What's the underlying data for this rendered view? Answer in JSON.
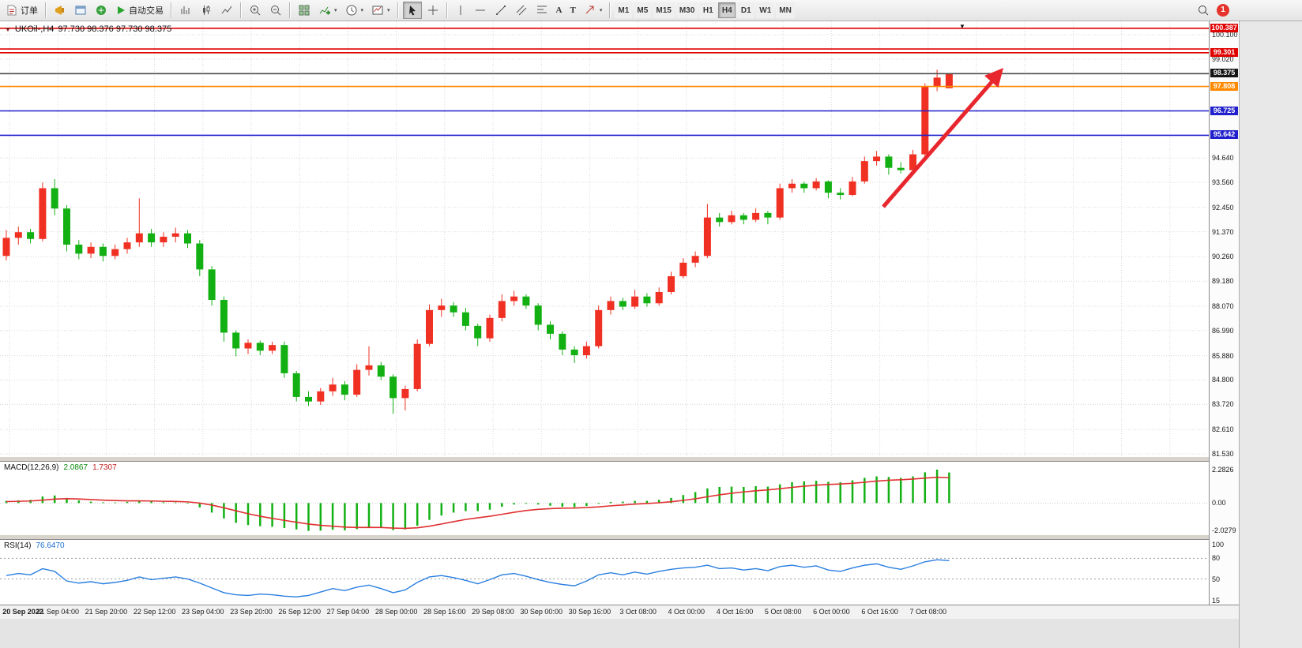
{
  "toolbar": {
    "order_label": "订单",
    "autotrade_label": "自动交易",
    "text_tool": "A",
    "label_tool": "T",
    "timeframes": [
      "M1",
      "M5",
      "M15",
      "M30",
      "H1",
      "H4",
      "D1",
      "W1",
      "MN"
    ],
    "active_timeframe": "H4",
    "notification_count": "1"
  },
  "chart_header": {
    "symbol_period": "UKOil-,H4",
    "ohlc": "97.730 98.376 97.730 98.375"
  },
  "chart_data": {
    "type": "candlestick",
    "symbol": "UKOil-",
    "timeframe": "H4",
    "up_color": "#f03022",
    "down_color": "#12b012",
    "grid_color": "#d8d8d8",
    "time_labels": [
      "20 Sep 2022",
      "21 Sep 04:00",
      "21 Sep 20:00",
      "22 Sep 12:00",
      "23 Sep 04:00",
      "23 Sep 20:00",
      "26 Sep 12:00",
      "27 Sep 04:00",
      "28 Sep 00:00",
      "28 Sep 16:00",
      "29 Sep 08:00",
      "30 Sep 00:00",
      "30 Sep 16:00",
      "3 Oct 08:00",
      "4 Oct 00:00",
      "4 Oct 16:00",
      "5 Oct 08:00",
      "6 Oct 00:00",
      "6 Oct 16:00",
      "7 Oct 08:00"
    ],
    "price_axis_ticks": [
      "100.100",
      "99.020",
      "94.640",
      "93.560",
      "92.450",
      "91.370",
      "90.260",
      "89.180",
      "88.070",
      "86.990",
      "85.880",
      "84.800",
      "83.720",
      "82.610",
      "81.530"
    ],
    "levels": [
      {
        "label": "100.387",
        "value": 100.387,
        "color": "#e00000",
        "badge": "#e00000",
        "line": true
      },
      {
        "label": "",
        "value": 99.47,
        "color": "#e00000",
        "badge": null,
        "line": true
      },
      {
        "label": "99.301",
        "value": 99.301,
        "color": "#e00000",
        "badge": "#e00000",
        "line": true
      },
      {
        "label": "98.375",
        "value": 98.375,
        "color": "#4a4a4a",
        "badge": "#151515",
        "line": true
      },
      {
        "label": "97.808",
        "value": 97.808,
        "color": "#ff8a00",
        "badge": "#ff8a00",
        "line": true
      },
      {
        "label": "96.725",
        "value": 96.725,
        "color": "#2020cc",
        "badge": "#2020cc",
        "line": true
      },
      {
        "label": "95.642",
        "value": 95.642,
        "color": "#2020cc",
        "badge": "#2020cc",
        "line": true
      }
    ],
    "candles": [
      [
        90.3,
        91.45,
        90.1,
        91.1
      ],
      [
        91.1,
        91.6,
        90.8,
        91.35
      ],
      [
        91.35,
        91.5,
        90.85,
        91.05
      ],
      [
        91.05,
        93.55,
        90.95,
        93.3
      ],
      [
        93.3,
        93.7,
        92.1,
        92.4
      ],
      [
        92.4,
        92.55,
        90.5,
        90.8
      ],
      [
        90.8,
        91.0,
        90.15,
        90.4
      ],
      [
        90.4,
        90.9,
        90.2,
        90.7
      ],
      [
        90.7,
        90.85,
        90.05,
        90.3
      ],
      [
        90.3,
        90.8,
        90.15,
        90.6
      ],
      [
        90.6,
        91.1,
        90.4,
        90.9
      ],
      [
        90.9,
        92.85,
        90.7,
        91.3
      ],
      [
        91.3,
        91.5,
        90.7,
        90.9
      ],
      [
        90.9,
        91.35,
        90.7,
        91.15
      ],
      [
        91.15,
        91.55,
        90.9,
        91.3
      ],
      [
        91.3,
        91.45,
        90.65,
        90.85
      ],
      [
        90.85,
        91.0,
        89.4,
        89.7
      ],
      [
        89.7,
        89.85,
        88.1,
        88.35
      ],
      [
        88.35,
        88.5,
        86.5,
        86.9
      ],
      [
        86.9,
        87.0,
        85.85,
        86.2
      ],
      [
        86.2,
        86.6,
        85.95,
        86.45
      ],
      [
        86.45,
        86.55,
        85.9,
        86.1
      ],
      [
        86.1,
        86.5,
        85.95,
        86.35
      ],
      [
        86.35,
        86.5,
        84.9,
        85.1
      ],
      [
        85.1,
        85.2,
        83.85,
        84.05
      ],
      [
        84.05,
        84.3,
        83.65,
        83.85
      ],
      [
        83.85,
        84.45,
        83.7,
        84.3
      ],
      [
        84.3,
        84.9,
        84.1,
        84.6
      ],
      [
        84.6,
        84.75,
        83.9,
        84.15
      ],
      [
        84.15,
        85.5,
        84.05,
        85.25
      ],
      [
        85.25,
        86.3,
        85.0,
        85.45
      ],
      [
        85.45,
        85.6,
        84.8,
        84.95
      ],
      [
        84.95,
        85.05,
        83.3,
        84.0
      ],
      [
        84.0,
        84.55,
        83.45,
        84.4
      ],
      [
        84.4,
        86.6,
        84.3,
        86.4
      ],
      [
        86.4,
        88.15,
        86.3,
        87.9
      ],
      [
        87.9,
        88.4,
        87.6,
        88.1
      ],
      [
        88.1,
        88.25,
        87.6,
        87.8
      ],
      [
        87.8,
        88.0,
        87.0,
        87.2
      ],
      [
        87.2,
        87.3,
        86.3,
        86.65
      ],
      [
        86.65,
        87.7,
        86.5,
        87.55
      ],
      [
        87.55,
        88.6,
        87.4,
        88.3
      ],
      [
        88.3,
        88.75,
        88.1,
        88.5
      ],
      [
        88.5,
        88.6,
        87.95,
        88.1
      ],
      [
        88.1,
        88.2,
        87.0,
        87.25
      ],
      [
        87.25,
        87.4,
        86.6,
        86.85
      ],
      [
        86.85,
        86.95,
        85.9,
        86.15
      ],
      [
        86.15,
        86.3,
        85.55,
        85.9
      ],
      [
        85.9,
        86.5,
        85.75,
        86.3
      ],
      [
        86.3,
        88.1,
        86.2,
        87.9
      ],
      [
        87.9,
        88.5,
        87.7,
        88.3
      ],
      [
        88.3,
        88.45,
        87.9,
        88.05
      ],
      [
        88.05,
        88.8,
        87.95,
        88.5
      ],
      [
        88.5,
        88.65,
        88.05,
        88.2
      ],
      [
        88.2,
        88.9,
        88.1,
        88.7
      ],
      [
        88.7,
        89.6,
        88.6,
        89.4
      ],
      [
        89.4,
        90.2,
        89.3,
        90.0
      ],
      [
        90.0,
        90.5,
        89.8,
        90.3
      ],
      [
        90.3,
        92.6,
        90.2,
        92.0
      ],
      [
        92.0,
        92.2,
        91.6,
        91.8
      ],
      [
        91.8,
        92.3,
        91.7,
        92.1
      ],
      [
        92.1,
        92.2,
        91.7,
        91.9
      ],
      [
        91.9,
        92.4,
        91.8,
        92.2
      ],
      [
        92.2,
        92.3,
        91.7,
        92.0
      ],
      [
        92.0,
        93.5,
        91.9,
        93.3
      ],
      [
        93.3,
        93.7,
        93.1,
        93.5
      ],
      [
        93.5,
        93.6,
        93.1,
        93.3
      ],
      [
        93.3,
        93.75,
        93.2,
        93.6
      ],
      [
        93.6,
        93.65,
        92.85,
        93.1
      ],
      [
        93.1,
        93.3,
        92.8,
        93.0
      ],
      [
        93.0,
        93.8,
        92.95,
        93.6
      ],
      [
        93.6,
        94.7,
        93.5,
        94.5
      ],
      [
        94.5,
        94.95,
        94.3,
        94.7
      ],
      [
        94.7,
        94.8,
        93.9,
        94.2
      ],
      [
        94.2,
        94.45,
        93.95,
        94.1
      ],
      [
        94.1,
        95.0,
        94.0,
        94.8
      ],
      [
        94.8,
        97.95,
        94.7,
        97.8
      ],
      [
        97.8,
        98.55,
        97.6,
        98.2
      ],
      [
        97.73,
        98.376,
        97.73,
        98.375
      ]
    ],
    "macd": {
      "label": "MACD(12,26,9)",
      "value": "2.0867",
      "signal_value": "1.7307",
      "axis": [
        "2.2826",
        "0.00",
        "-2.0279"
      ],
      "axis_values": [
        2.2826,
        0,
        -2.0279
      ],
      "hist_color": "#12b012",
      "signal_color": "#e03030",
      "histogram": [
        0.15,
        0.18,
        0.22,
        0.45,
        0.52,
        0.35,
        0.18,
        0.1,
        0.05,
        0.04,
        0.08,
        0.14,
        0.1,
        0.06,
        0.04,
        -0.04,
        -0.3,
        -0.65,
        -1.05,
        -1.35,
        -1.5,
        -1.58,
        -1.62,
        -1.7,
        -1.8,
        -1.9,
        -1.88,
        -1.82,
        -1.86,
        -1.78,
        -1.65,
        -1.7,
        -1.85,
        -1.8,
        -1.55,
        -1.15,
        -0.85,
        -0.65,
        -0.55,
        -0.55,
        -0.45,
        -0.25,
        -0.1,
        -0.05,
        -0.1,
        -0.18,
        -0.25,
        -0.28,
        -0.2,
        -0.05,
        0.08,
        0.1,
        0.15,
        0.15,
        0.22,
        0.35,
        0.55,
        0.75,
        1.0,
        1.1,
        1.12,
        1.1,
        1.15,
        1.12,
        1.28,
        1.42,
        1.48,
        1.52,
        1.45,
        1.42,
        1.55,
        1.72,
        1.82,
        1.78,
        1.72,
        1.82,
        2.1,
        2.2826,
        2.0867
      ],
      "signal": [
        0.1,
        0.12,
        0.14,
        0.2,
        0.27,
        0.3,
        0.28,
        0.24,
        0.2,
        0.17,
        0.15,
        0.15,
        0.14,
        0.12,
        0.11,
        0.08,
        0.0,
        -0.14,
        -0.32,
        -0.53,
        -0.73,
        -0.9,
        -1.05,
        -1.18,
        -1.31,
        -1.43,
        -1.52,
        -1.58,
        -1.64,
        -1.67,
        -1.66,
        -1.67,
        -1.71,
        -1.73,
        -1.69,
        -1.58,
        -1.43,
        -1.27,
        -1.12,
        -1.01,
        -0.9,
        -0.77,
        -0.63,
        -0.51,
        -0.43,
        -0.38,
        -0.35,
        -0.34,
        -0.31,
        -0.26,
        -0.19,
        -0.13,
        -0.07,
        -0.03,
        0.02,
        0.09,
        0.18,
        0.29,
        0.43,
        0.56,
        0.67,
        0.76,
        0.84,
        0.9,
        0.98,
        1.07,
        1.15,
        1.22,
        1.27,
        1.3,
        1.35,
        1.42,
        1.5,
        1.56,
        1.59,
        1.64,
        1.7,
        1.76,
        1.7307
      ]
    },
    "rsi": {
      "label": "RSI(14)",
      "value": "76.6470",
      "axis": [
        "100",
        "80",
        "50",
        "15"
      ],
      "axis_values": [
        100,
        80,
        50,
        15
      ],
      "line_color": "#2a7fe0",
      "level_lines": [
        80,
        50
      ],
      "values": [
        55,
        58,
        56,
        65,
        61,
        47,
        44,
        46,
        43,
        45,
        48,
        53,
        49,
        51,
        53,
        50,
        44,
        37,
        30,
        27,
        26,
        28,
        27,
        25,
        24,
        26,
        31,
        36,
        33,
        38,
        41,
        36,
        30,
        34,
        45,
        53,
        55,
        52,
        48,
        43,
        49,
        56,
        58,
        54,
        49,
        45,
        42,
        40,
        47,
        56,
        59,
        56,
        60,
        57,
        61,
        64,
        66,
        67,
        70,
        65,
        66,
        63,
        65,
        62,
        68,
        70,
        67,
        69,
        63,
        61,
        66,
        70,
        72,
        67,
        64,
        69,
        75,
        78,
        76.647
      ],
      "current": 76.647
    },
    "annotation_arrow": {
      "color": "#e8262d"
    }
  }
}
